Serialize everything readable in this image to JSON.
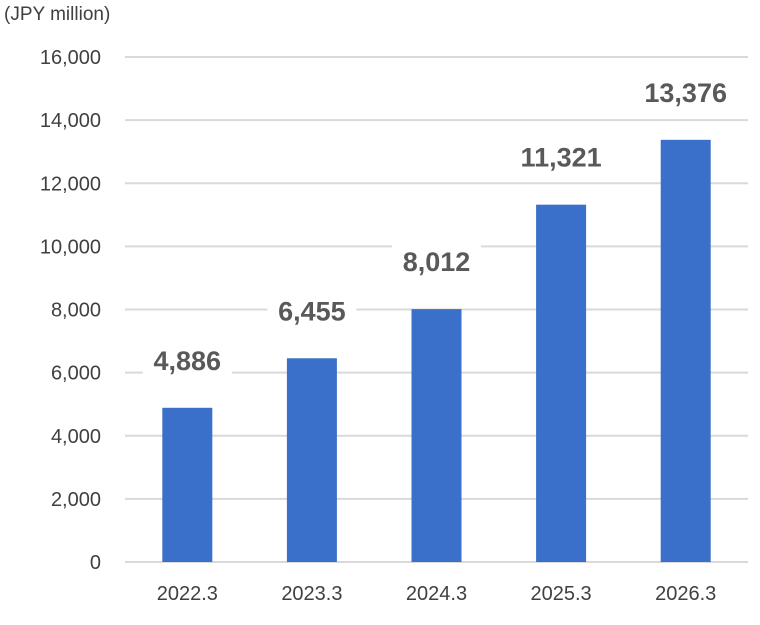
{
  "chart_data": {
    "type": "bar",
    "unit_label": "(JPY million)",
    "categories": [
      "2022.3",
      "2023.3",
      "2024.3",
      "2025.3",
      "2026.3"
    ],
    "values": [
      4886,
      6455,
      8012,
      11321,
      13376
    ],
    "data_labels": [
      "4,886",
      "6,455",
      "8,012",
      "11,321",
      "13,376"
    ],
    "ylim": [
      0,
      16000
    ],
    "yticks": [
      0,
      2000,
      4000,
      6000,
      8000,
      10000,
      12000,
      14000,
      16000
    ],
    "ytick_labels": [
      "0",
      "2,000",
      "4,000",
      "6,000",
      "8,000",
      "10,000",
      "12,000",
      "14,000",
      "16,000"
    ],
    "grid": true,
    "bar_color": "#3a70c9",
    "grid_color": "#d9d9d9"
  }
}
